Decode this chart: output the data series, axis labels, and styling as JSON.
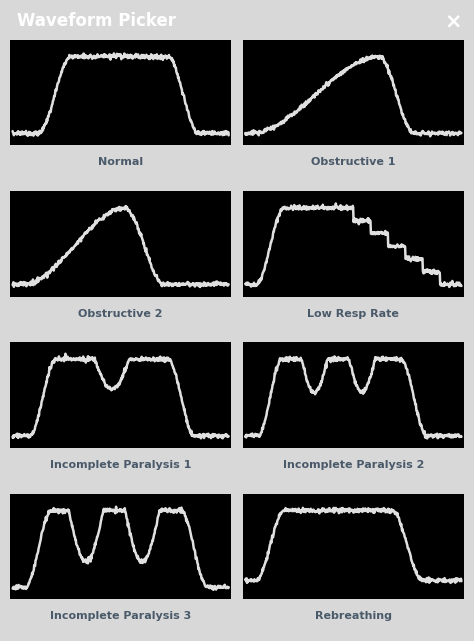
{
  "title": "Waveform Picker",
  "title_bg": "#5a6e7e",
  "title_color": "#ffffff",
  "outer_bg": "#d8d8d8",
  "card_bg": "#ffffff",
  "plot_bg": "#000000",
  "label_color": "#4a5a6a",
  "line_color": "#e0e0e0",
  "line_width": 1.8,
  "waveforms": [
    {
      "name": "Normal",
      "type": "normal"
    },
    {
      "name": "Obstructive 1",
      "type": "obstructive1"
    },
    {
      "name": "Obstructive 2",
      "type": "obstructive2"
    },
    {
      "name": "Low Resp Rate",
      "type": "lowresprate"
    },
    {
      "name": "Incomplete Paralysis 1",
      "type": "incompleteparalysis1"
    },
    {
      "name": "Incomplete Paralysis 2",
      "type": "incompleteparalysis2"
    },
    {
      "name": "Incomplete Paralysis 3",
      "type": "incompleteparalysis3"
    },
    {
      "name": "Rebreathing",
      "type": "rebreathing"
    }
  ]
}
